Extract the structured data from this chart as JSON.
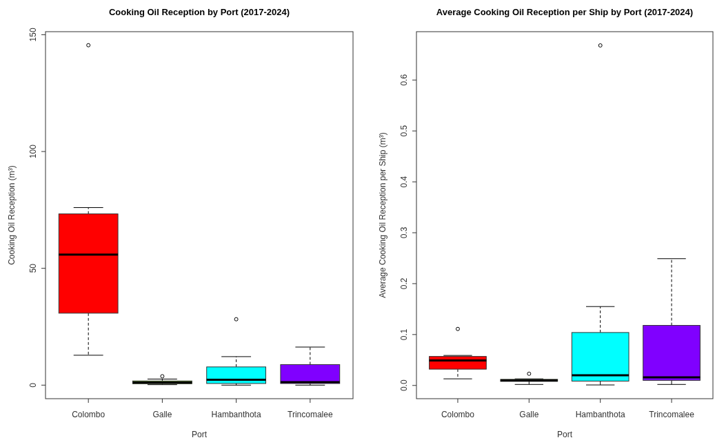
{
  "chart_data": [
    {
      "type": "box",
      "title": "Cooking Oil Reception by Port (2017-2024)",
      "xlabel": "Port",
      "ylabel": "Cooking Oil Reception  (m³)",
      "categories": [
        "Colombo",
        "Galle",
        "Hambanthota",
        "Trincomalee"
      ],
      "colors": [
        "#ff0000",
        "#80ff00",
        "#00ffff",
        "#8000ff"
      ],
      "boxes": [
        {
          "low": 12.8,
          "q1": 30.8,
          "median": 55.9,
          "q3": 73.3,
          "high": 76.0,
          "outliers": [
            145.5
          ]
        },
        {
          "low": 0.2,
          "q1": 0.6,
          "median": 1.1,
          "q3": 1.8,
          "high": 2.6,
          "outliers": [
            3.8
          ]
        },
        {
          "low": 0,
          "q1": 0.7,
          "median": 2.3,
          "q3": 7.8,
          "high": 12.2,
          "outliers": [
            28.2
          ]
        },
        {
          "low": 0,
          "q1": 0.7,
          "median": 1.3,
          "q3": 8.8,
          "high": 16.3
        }
      ],
      "ylim": [
        -5.8,
        151.3
      ],
      "yticks": [
        0,
        50,
        100,
        150
      ],
      "grid": false
    },
    {
      "type": "box",
      "title": "Average Cooking Oil Reception per Ship by Port (2017-2024)",
      "xlabel": "Port",
      "ylabel": "Average Cooking Oil Reception per Ship  (m³)",
      "categories": [
        "Colombo",
        "Galle",
        "Hambanthota",
        "Trincomalee"
      ],
      "colors": [
        "#ff0000",
        "#80ff00",
        "#00ffff",
        "#8000ff"
      ],
      "boxes": [
        {
          "low": 0.013,
          "q1": 0.032,
          "median": 0.049,
          "q3": 0.057,
          "high": 0.059,
          "outliers": [
            0.111
          ]
        },
        {
          "low": 0.002,
          "q1": 0.008,
          "median": 0.01,
          "q3": 0.012,
          "high": 0.013,
          "outliers": [
            0.023
          ]
        },
        {
          "low": 0.001,
          "q1": 0.0085,
          "median": 0.02,
          "q3": 0.104,
          "high": 0.155,
          "outliers": [
            0.668
          ]
        },
        {
          "low": 0.002,
          "q1": 0.01,
          "median": 0.016,
          "q3": 0.118,
          "high": 0.249
        }
      ],
      "ylim": [
        -0.026,
        0.695
      ],
      "yticks": [
        {
          "value": 0,
          "label": "0.0"
        },
        0.1,
        0.2,
        0.3,
        0.4,
        0.5,
        0.6
      ],
      "grid": false
    }
  ]
}
